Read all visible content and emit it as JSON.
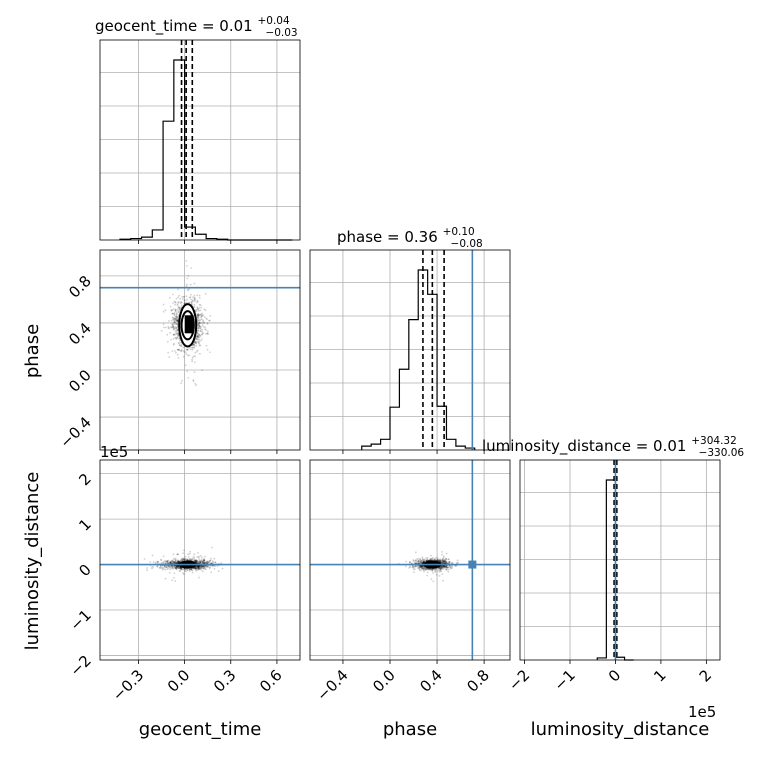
{
  "chart_data": {
    "type": "corner",
    "parameters": [
      "geocent_time",
      "phase",
      "luminosity_distance"
    ],
    "axis_labels": {
      "geocent_time": "geocent_time",
      "phase": "phase",
      "luminosity_distance": "luminosity_distance"
    },
    "ranges": {
      "geocent_time": [
        -0.55,
        0.75
      ],
      "phase": [
        -0.68,
        1.02
      ],
      "luminosity_distance": [
        -2.1,
        2.3
      ]
    },
    "ticks": {
      "geocent_time": {
        "values": [
          -0.3,
          0.0,
          0.3,
          0.6
        ],
        "labels": [
          "−0.3",
          "0.0",
          "0.3",
          "0.6"
        ]
      },
      "phase": {
        "values": [
          -0.4,
          0.0,
          0.4,
          0.8
        ],
        "labels": [
          "−0.4",
          "0.0",
          "0.4",
          "0.8"
        ]
      },
      "luminosity_distance": {
        "values": [
          -2,
          -1,
          0,
          1,
          2
        ],
        "labels": [
          "−2",
          "−1",
          "0",
          "1",
          "2"
        ]
      }
    },
    "offset_text": {
      "luminosity_distance": "1e5"
    },
    "titles": {
      "geocent_time": {
        "main": "geocent_time = 0.01",
        "sup": "+0.04",
        "sub": "−0.03"
      },
      "phase": {
        "main": "phase = 0.36",
        "sup": "+0.10",
        "sub": "−0.08"
      },
      "luminosity_distance": {
        "main": "luminosity_distance = 0.01",
        "sup": "+304.32",
        "sub": "−330.06"
      }
    },
    "quantiles": {
      "geocent_time": [
        -0.02,
        0.01,
        0.05
      ],
      "phase": [
        0.28,
        0.36,
        0.46
      ],
      "luminosity_distance": [
        -0.03,
        0.0,
        0.03
      ]
    },
    "truths": {
      "phase": 0.7,
      "luminosity_distance": 0.0
    },
    "histograms": {
      "geocent_time": {
        "bins": [
          -0.42,
          -0.35,
          -0.28,
          -0.21,
          -0.14,
          -0.07,
          0.0,
          0.07,
          0.14,
          0.21,
          0.28,
          0.35,
          0.42,
          0.49,
          0.56,
          0.63,
          0.7
        ],
        "counts": [
          1,
          2,
          4,
          14,
          165,
          250,
          18,
          8,
          2,
          1,
          0,
          0,
          0,
          0,
          0,
          0
        ]
      },
      "phase": {
        "bins": [
          -0.24,
          -0.16,
          -0.08,
          0.0,
          0.08,
          0.16,
          0.24,
          0.32,
          0.4,
          0.48,
          0.56,
          0.64,
          0.72
        ],
        "counts": [
          4,
          6,
          11,
          44,
          83,
          134,
          185,
          160,
          45,
          11,
          4,
          2
        ]
      },
      "luminosity_distance": {
        "bins": [
          -0.4,
          -0.2,
          0.0,
          0.2,
          0.4
        ],
        "counts": [
          3,
          260,
          4,
          0
        ]
      }
    },
    "scatter": {
      "geocent_time|phase": {
        "center": [
          0.02,
          0.38
        ],
        "spread": [
          0.05,
          0.1
        ],
        "contour_levels": [
          {
            "rx": 0.055,
            "ry": 0.18
          },
          {
            "rx": 0.04,
            "ry": 0.12
          }
        ]
      },
      "geocent_time|luminosity_distance": {
        "center": [
          0.02,
          0.0
        ],
        "spread": [
          0.08,
          0.05
        ]
      },
      "phase|luminosity_distance": {
        "center": [
          0.36,
          0.0
        ],
        "spread": [
          0.07,
          0.05
        ]
      }
    }
  }
}
